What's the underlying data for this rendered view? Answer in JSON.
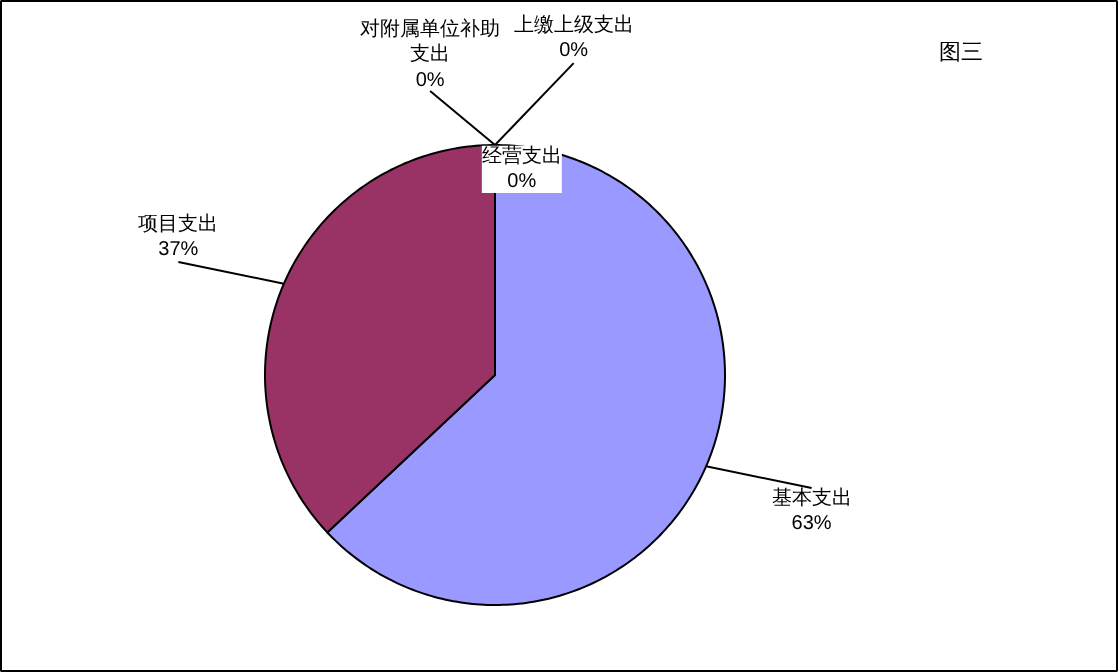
{
  "chart_data": {
    "type": "pie",
    "title": "图三",
    "categories": [
      "基本支出",
      "项目支出",
      "对附属单位补助支出",
      "上缴上级支出",
      "经营支出"
    ],
    "values": [
      63,
      37,
      0,
      0,
      0
    ],
    "value_labels": [
      "63%",
      "37%",
      "0%",
      "0%",
      "0%"
    ],
    "colors": [
      "#9999ff",
      "#993366",
      "#ffffcc",
      "#ccffff",
      "#660066"
    ]
  }
}
